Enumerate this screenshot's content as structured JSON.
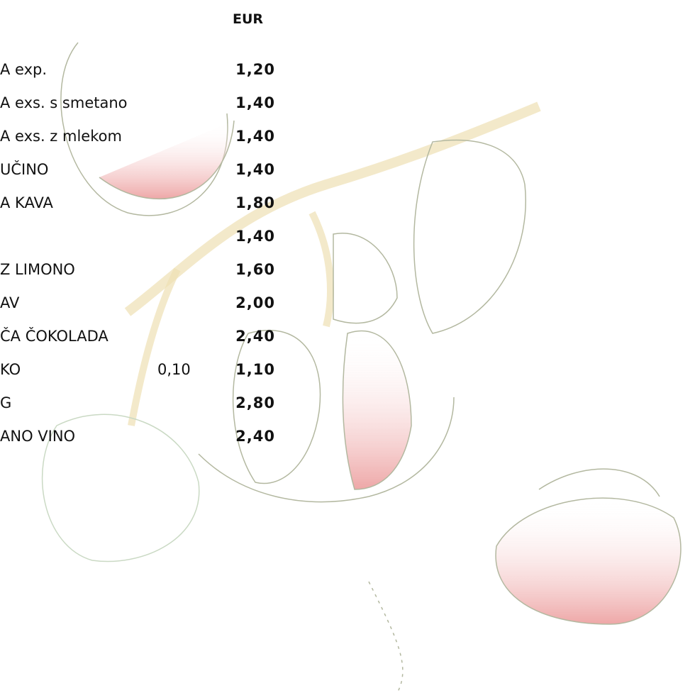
{
  "header": {
    "currency": "EUR"
  },
  "items": [
    {
      "name": "A exp.",
      "price": "1,20"
    },
    {
      "name": "A exs. s smetano",
      "price": "1,40"
    },
    {
      "name": "A exs. z mlekom",
      "price": "1,40"
    },
    {
      "name": "UČINO",
      "price": "1,40"
    },
    {
      "name": "A KAVA",
      "price": "1,80"
    },
    {
      "name": null,
      "price": "1,40"
    },
    {
      "name": "Z LIMONO",
      "price": "1,60"
    },
    {
      "name": "AV",
      "price": "2,00"
    },
    {
      "name": "ČA ČOKOLADA",
      "price": "2,40"
    },
    {
      "name": "KO",
      "quantity": "0,10",
      "price": "1,10"
    },
    {
      "name": "G",
      "price": "2,80"
    },
    {
      "name": "ANO VINO",
      "price": "2,40"
    }
  ]
}
